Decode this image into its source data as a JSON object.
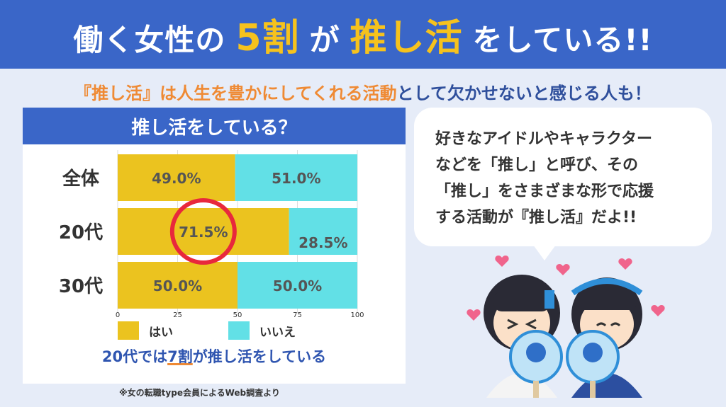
{
  "banner": {
    "title_part1": "働く女性の",
    "title_highlight1": "5割",
    "title_part2": "が",
    "title_highlight2": "推し活",
    "title_part3": "をしている!!"
  },
  "subheadline": {
    "part_orange": "『推し活』は人生を豊かにしてくれる活動",
    "part_navy": "として欠かせないと感じる人も！"
  },
  "chart_data": {
    "type": "bar",
    "orientation": "horizontal",
    "stacked": true,
    "title": "推し活をしている？",
    "categories": [
      "全体",
      "20代",
      "30代"
    ],
    "series": [
      {
        "name": "はい",
        "color": "#ebc31f",
        "values": [
          49.0,
          71.5,
          50.0
        ],
        "labels": [
          "49.0%",
          "71.5%",
          "50.0%"
        ]
      },
      {
        "name": "いいえ",
        "color": "#62e0e6",
        "values": [
          51.0,
          28.5,
          50.0
        ],
        "labels": [
          "51.0%",
          "28.5%",
          "50.0%"
        ]
      }
    ],
    "xlim": [
      0,
      100
    ],
    "xticks": [
      "0",
      "25",
      "50",
      "75",
      "100"
    ],
    "legend_position": "bottom",
    "highlight": {
      "category": "20代",
      "series": "はい",
      "shape": "circle",
      "color": "#e8283c"
    }
  },
  "chart_note": {
    "text_before": "20代では",
    "text_emph": "7割",
    "text_after": "が推し活をしている"
  },
  "source": "※女の転職type会員によるWeb調査より",
  "bubble": {
    "lines": [
      "好きなアイドルやキャラクター",
      "などを「推し」と呼び、その",
      "「推し」をさまざまな形で応援",
      "する活動が『推し活』だよ!!"
    ]
  }
}
